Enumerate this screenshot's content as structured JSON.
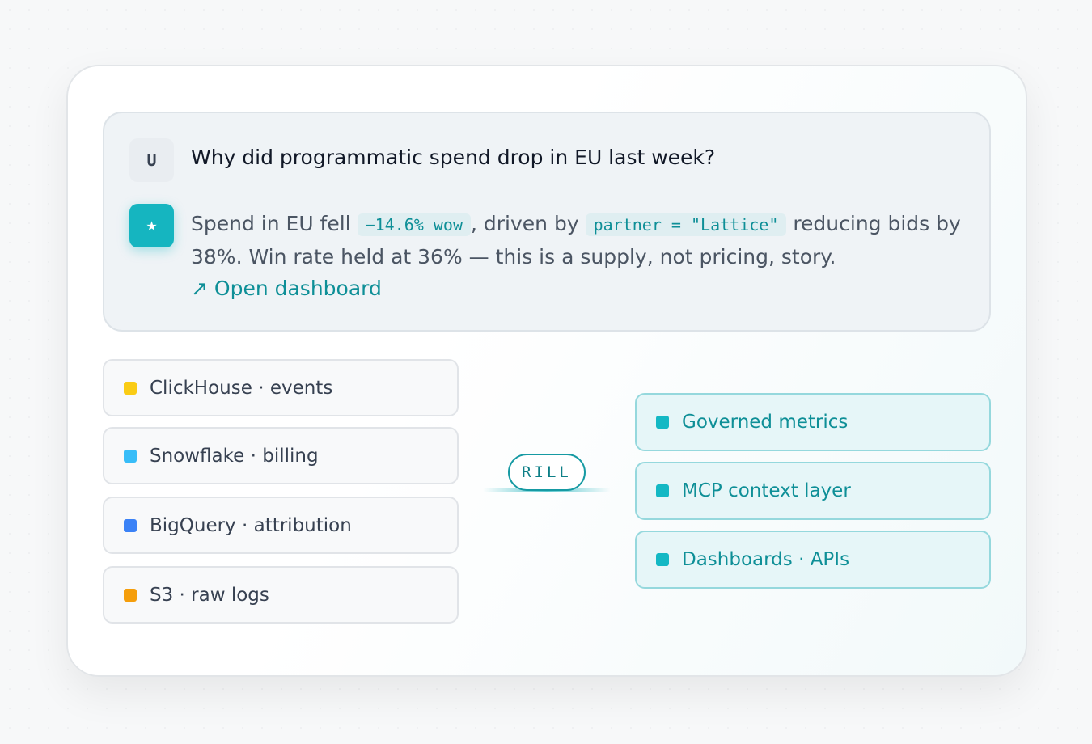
{
  "chat": {
    "user": {
      "avatar": "U",
      "message": "Why did programmatic spend drop in EU last week?"
    },
    "assistant": {
      "avatar": "★",
      "parts": [
        "Spend in EU fell ",
        "−14.6% wow",
        ", driven by ",
        "partner = \"Lattice\"",
        " reducing bids by 38%. Win rate held at 36% — this is a supply, not pricing, story."
      ],
      "link": "↗ Open dashboard"
    }
  },
  "sources": [
    {
      "label": "ClickHouse · events",
      "color": "#facc15"
    },
    {
      "label": "Snowflake · billing",
      "color": "#38bdf8"
    },
    {
      "label": "BigQuery · attribution",
      "color": "#3b82f6"
    },
    {
      "label": "S3 · raw logs",
      "color": "#f59e0b"
    }
  ],
  "hub": {
    "label": "RILL"
  },
  "outputs": [
    {
      "label": "Governed metrics",
      "color": "#14b8c4"
    },
    {
      "label": "MCP context layer",
      "color": "#14b8c4"
    },
    {
      "label": "Dashboards · APIs",
      "color": "#14b8c4"
    }
  ]
}
